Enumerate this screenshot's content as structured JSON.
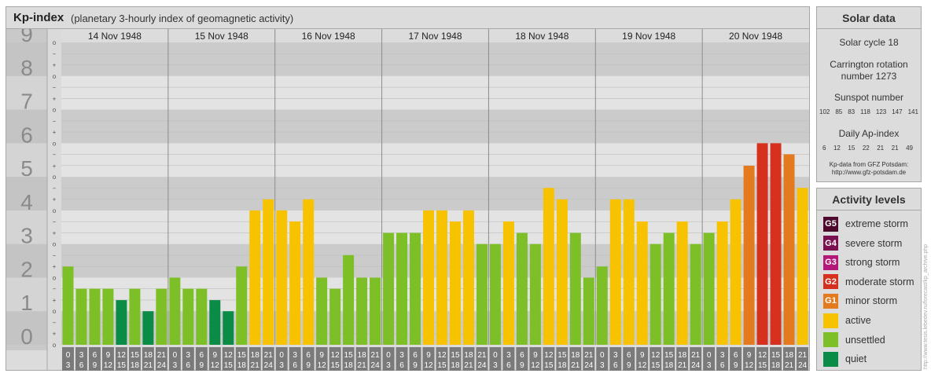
{
  "header": {
    "title": "Kp-index",
    "subtitle": "(planetary 3-hourly index of geomagnetic activity)"
  },
  "solar": {
    "title": "Solar data",
    "cycle": "Solar cycle 18",
    "carrington_1": "Carrington rotation",
    "carrington_2": "number 1273",
    "sunspot_label": "Sunspot number",
    "sunspot_numbers": [
      "102",
      "85",
      "83",
      "118",
      "123",
      "147",
      "141"
    ],
    "ap_label": "Daily Ap-index",
    "ap_values": [
      "6",
      "12",
      "15",
      "22",
      "21",
      "21",
      "49"
    ],
    "source_1": "Kp-data from GFZ Potsdam:",
    "source_2": "http://www.gfz-potsdam.de"
  },
  "activity": {
    "title": "Activity levels",
    "items": [
      {
        "badge": "G5",
        "label": "extreme storm",
        "color": "#4e0a2e"
      },
      {
        "badge": "G4",
        "label": "severe storm",
        "color": "#7b1050"
      },
      {
        "badge": "G3",
        "label": "strong storm",
        "color": "#b3177a"
      },
      {
        "badge": "G2",
        "label": "moderate storm",
        "color": "#d6301e"
      },
      {
        "badge": "G1",
        "label": "minor storm",
        "color": "#e37b1e"
      },
      {
        "badge": "",
        "label": "active",
        "color": "#f7c200"
      },
      {
        "badge": "",
        "label": "unsettled",
        "color": "#7cbf26"
      },
      {
        "badge": "",
        "label": "quiet",
        "color": "#0a8c46"
      }
    ]
  },
  "watermark": "http://www.tesis.lebedev.ru/forecast/kp_archive.php",
  "chart_data": {
    "type": "bar",
    "title": "Kp-index",
    "ylim": [
      0,
      9
    ],
    "y_ticks": [
      "0",
      "1",
      "2",
      "3",
      "4",
      "5",
      "6",
      "7",
      "8",
      "9"
    ],
    "minor_tick_labels": [
      "o",
      "+",
      "−"
    ],
    "days": [
      "14 Nov 1948",
      "15 Nov 1948",
      "16 Nov 1948",
      "17 Nov 1948",
      "18 Nov 1948",
      "19 Nov 1948",
      "20 Nov 1948"
    ],
    "interval_top": [
      "0",
      "3",
      "6",
      "9",
      "12",
      "15",
      "18",
      "21"
    ],
    "interval_bottom": [
      "3",
      "6",
      "9",
      "12",
      "15",
      "18",
      "21",
      "24"
    ],
    "colors": {
      "quiet": "#0a8c46",
      "unsettled": "#7cbf26",
      "active": "#f7c200",
      "minor_storm": "#e37b1e",
      "moderate_storm": "#d6301e"
    },
    "values": [
      2.33,
      1.67,
      1.67,
      1.67,
      1.33,
      1.67,
      1.0,
      1.67,
      2.0,
      1.67,
      1.67,
      1.33,
      1.0,
      2.33,
      4.0,
      4.33,
      4.0,
      3.67,
      4.33,
      2.0,
      1.67,
      2.67,
      2.0,
      2.0,
      3.33,
      3.33,
      3.33,
      4.0,
      4.0,
      3.67,
      4.0,
      3.0,
      3.0,
      3.67,
      3.33,
      3.0,
      4.67,
      4.33,
      3.33,
      2.0,
      2.33,
      4.33,
      4.33,
      3.67,
      3.0,
      3.33,
      3.67,
      3.0,
      3.33,
      3.67,
      4.33,
      5.33,
      6.0,
      6.0,
      5.67,
      4.67
    ]
  }
}
